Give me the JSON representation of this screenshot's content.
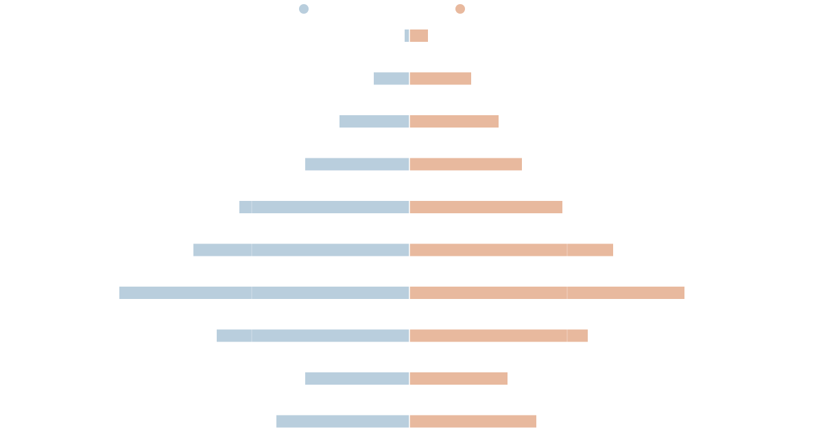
{
  "chart_data": {
    "type": "bar",
    "orientation": "horizontal-diverging",
    "title": "",
    "xlabel": "",
    "ylabel": "",
    "grid": false,
    "legend_position": "top-center",
    "colors": {
      "left": "#b9cedd",
      "right": "#e8b99e"
    },
    "series": [
      {
        "values": [
          7,
          52,
          102,
          152,
          248,
          315,
          423,
          281,
          152,
          194
        ],
        "color": "#b9cedd"
      },
      {
        "values": [
          27,
          90,
          130,
          164,
          223,
          297,
          401,
          260,
          143,
          185
        ],
        "color": "#e8b99e"
      }
    ],
    "xlim": [
      -450,
      450
    ]
  }
}
